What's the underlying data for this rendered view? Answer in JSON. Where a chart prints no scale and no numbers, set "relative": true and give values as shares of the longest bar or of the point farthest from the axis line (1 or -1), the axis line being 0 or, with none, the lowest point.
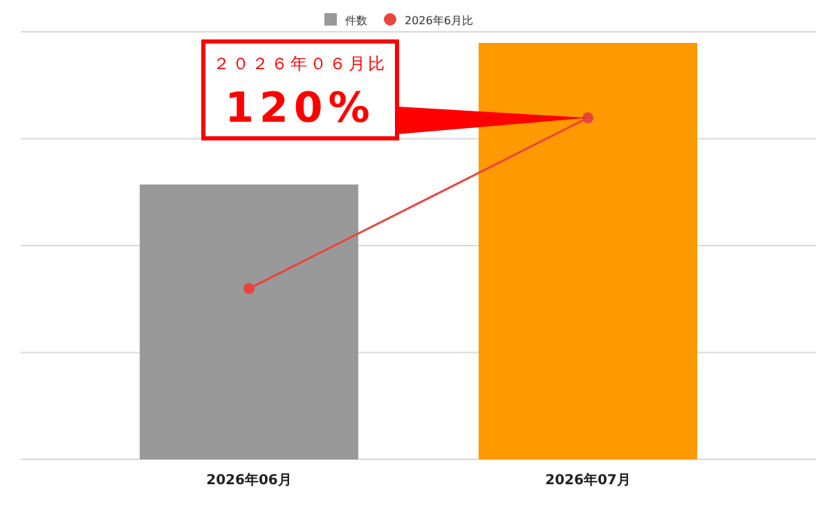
{
  "chart_data": {
    "type": "bar",
    "relative": true,
    "categories": [
      "2026年06月",
      "2026年07月"
    ],
    "series": [
      {
        "name": "件数",
        "color": "#999999",
        "colors": [
          "#999999",
          "#ff9900"
        ],
        "values": [
          0.66,
          1
        ]
      },
      {
        "name": "2026年6月比",
        "type": "line",
        "color": "#e8453c",
        "values": [
          0.41,
          0.82
        ]
      }
    ],
    "annotations": [
      "２０２６年０６月比",
      "120%"
    ],
    "grid": "y",
    "legend": "top",
    "marker": "circle",
    "line_style": "solid"
  }
}
